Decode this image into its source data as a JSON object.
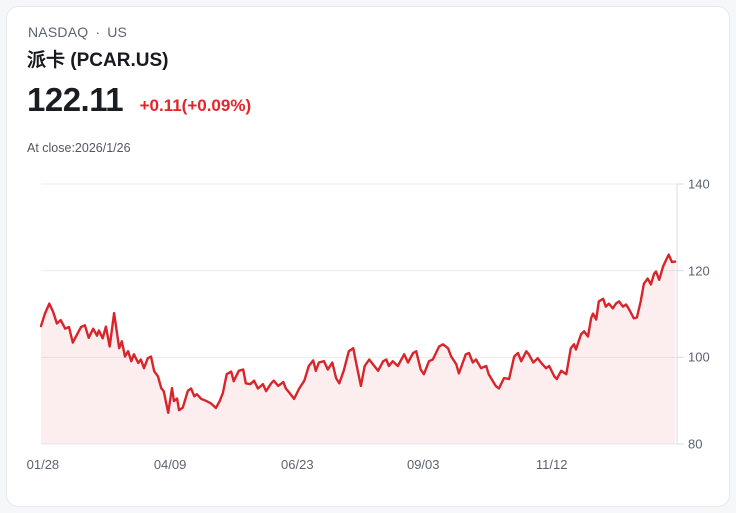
{
  "header": {
    "exchange": "NASDAQ",
    "separator": "·",
    "market": "US",
    "title": "派卡 (PCAR.US)"
  },
  "quote": {
    "price": "122.11",
    "change": "+0.11(+0.09%)",
    "as_of": "At close:2026/1/26"
  },
  "colors": {
    "line_red": "#d8252b",
    "fill_pink": "rgba(216,37,43,0.08)",
    "change_red": "#e3242b",
    "grid": "#e9ebee",
    "axis": "#d8dbe0",
    "tick_text": "#5c6370"
  },
  "chart_data": {
    "type": "area",
    "xlabel": "",
    "ylabel": "",
    "ylim": [
      80,
      140
    ],
    "y_ticks": [
      140,
      120,
      100,
      80
    ],
    "x_ticks": [
      {
        "label": "01/28",
        "pos": 0.003
      },
      {
        "label": "04/09",
        "pos": 0.203
      },
      {
        "label": "06/23",
        "pos": 0.403
      },
      {
        "label": "09/03",
        "pos": 0.601
      },
      {
        "label": "11/12",
        "pos": 0.803
      }
    ],
    "grid": "horizontal",
    "legend": "none",
    "points": [
      [
        0.0,
        107.2
      ],
      [
        0.006,
        110.0
      ],
      [
        0.013,
        112.4
      ],
      [
        0.019,
        110.5
      ],
      [
        0.025,
        107.8
      ],
      [
        0.031,
        108.6
      ],
      [
        0.038,
        106.6
      ],
      [
        0.044,
        107.0
      ],
      [
        0.05,
        103.4
      ],
      [
        0.057,
        105.4
      ],
      [
        0.063,
        107.0
      ],
      [
        0.069,
        107.4
      ],
      [
        0.075,
        104.5
      ],
      [
        0.082,
        106.6
      ],
      [
        0.088,
        105.0
      ],
      [
        0.091,
        106.2
      ],
      [
        0.097,
        104.4
      ],
      [
        0.102,
        107.1
      ],
      [
        0.108,
        102.5
      ],
      [
        0.115,
        110.2
      ],
      [
        0.123,
        102.1
      ],
      [
        0.127,
        103.7
      ],
      [
        0.132,
        100.2
      ],
      [
        0.137,
        101.4
      ],
      [
        0.142,
        99.1
      ],
      [
        0.146,
        100.7
      ],
      [
        0.153,
        98.7
      ],
      [
        0.157,
        99.5
      ],
      [
        0.162,
        97.5
      ],
      [
        0.168,
        99.8
      ],
      [
        0.173,
        100.2
      ],
      [
        0.178,
        96.8
      ],
      [
        0.184,
        95.6
      ],
      [
        0.189,
        92.9
      ],
      [
        0.193,
        92.2
      ],
      [
        0.2,
        87.2
      ],
      [
        0.206,
        92.9
      ],
      [
        0.209,
        89.9
      ],
      [
        0.214,
        90.5
      ],
      [
        0.217,
        87.8
      ],
      [
        0.223,
        88.4
      ],
      [
        0.231,
        92.3
      ],
      [
        0.236,
        92.8
      ],
      [
        0.241,
        91.0
      ],
      [
        0.245,
        91.5
      ],
      [
        0.252,
        90.4
      ],
      [
        0.259,
        90.0
      ],
      [
        0.267,
        89.4
      ],
      [
        0.275,
        88.3
      ],
      [
        0.281,
        89.9
      ],
      [
        0.286,
        91.8
      ],
      [
        0.292,
        96.1
      ],
      [
        0.299,
        96.7
      ],
      [
        0.303,
        94.5
      ],
      [
        0.311,
        96.9
      ],
      [
        0.318,
        97.2
      ],
      [
        0.322,
        94.0
      ],
      [
        0.329,
        93.8
      ],
      [
        0.335,
        94.6
      ],
      [
        0.341,
        92.8
      ],
      [
        0.349,
        93.8
      ],
      [
        0.354,
        92.2
      ],
      [
        0.362,
        94.0
      ],
      [
        0.366,
        94.6
      ],
      [
        0.373,
        93.4
      ],
      [
        0.381,
        94.3
      ],
      [
        0.385,
        92.8
      ],
      [
        0.393,
        91.4
      ],
      [
        0.398,
        90.4
      ],
      [
        0.406,
        92.8
      ],
      [
        0.414,
        94.6
      ],
      [
        0.421,
        98.0
      ],
      [
        0.428,
        99.3
      ],
      [
        0.432,
        96.9
      ],
      [
        0.437,
        98.8
      ],
      [
        0.445,
        99.1
      ],
      [
        0.451,
        97.2
      ],
      [
        0.458,
        98.8
      ],
      [
        0.464,
        95.2
      ],
      [
        0.469,
        94.0
      ],
      [
        0.476,
        96.9
      ],
      [
        0.484,
        101.4
      ],
      [
        0.491,
        102.1
      ],
      [
        0.495,
        99.1
      ],
      [
        0.503,
        93.4
      ],
      [
        0.509,
        98.0
      ],
      [
        0.516,
        99.5
      ],
      [
        0.524,
        98.0
      ],
      [
        0.53,
        96.9
      ],
      [
        0.538,
        99.1
      ],
      [
        0.543,
        99.5
      ],
      [
        0.547,
        98.0
      ],
      [
        0.553,
        99.1
      ],
      [
        0.561,
        98.0
      ],
      [
        0.571,
        100.7
      ],
      [
        0.577,
        98.8
      ],
      [
        0.585,
        101.0
      ],
      [
        0.59,
        101.4
      ],
      [
        0.597,
        97.2
      ],
      [
        0.602,
        96.1
      ],
      [
        0.61,
        99.1
      ],
      [
        0.616,
        99.5
      ],
      [
        0.626,
        102.5
      ],
      [
        0.632,
        103.0
      ],
      [
        0.64,
        102.1
      ],
      [
        0.645,
        100.2
      ],
      [
        0.653,
        98.4
      ],
      [
        0.657,
        96.3
      ],
      [
        0.668,
        100.7
      ],
      [
        0.673,
        101.0
      ],
      [
        0.679,
        98.8
      ],
      [
        0.684,
        99.5
      ],
      [
        0.692,
        97.5
      ],
      [
        0.7,
        98.0
      ],
      [
        0.704,
        96.1
      ],
      [
        0.715,
        93.4
      ],
      [
        0.72,
        92.8
      ],
      [
        0.728,
        95.2
      ],
      [
        0.736,
        95.0
      ],
      [
        0.744,
        100.2
      ],
      [
        0.75,
        101.0
      ],
      [
        0.755,
        99.1
      ],
      [
        0.763,
        101.4
      ],
      [
        0.767,
        100.7
      ],
      [
        0.774,
        98.8
      ],
      [
        0.781,
        99.8
      ],
      [
        0.786,
        98.8
      ],
      [
        0.794,
        97.5
      ],
      [
        0.799,
        98.0
      ],
      [
        0.807,
        95.6
      ],
      [
        0.811,
        95.0
      ],
      [
        0.818,
        96.9
      ],
      [
        0.826,
        96.1
      ],
      [
        0.833,
        102.1
      ],
      [
        0.838,
        103.0
      ],
      [
        0.841,
        101.8
      ],
      [
        0.849,
        105.3
      ],
      [
        0.854,
        106.0
      ],
      [
        0.86,
        104.8
      ],
      [
        0.865,
        109.0
      ],
      [
        0.868,
        110.1
      ],
      [
        0.873,
        108.7
      ],
      [
        0.877,
        112.9
      ],
      [
        0.884,
        113.5
      ],
      [
        0.888,
        111.7
      ],
      [
        0.893,
        112.4
      ],
      [
        0.899,
        111.3
      ],
      [
        0.904,
        112.4
      ],
      [
        0.909,
        112.9
      ],
      [
        0.915,
        111.7
      ],
      [
        0.92,
        112.2
      ],
      [
        0.925,
        111.0
      ],
      [
        0.932,
        109.0
      ],
      [
        0.937,
        109.2
      ],
      [
        0.943,
        112.9
      ],
      [
        0.948,
        117.0
      ],
      [
        0.954,
        118.2
      ],
      [
        0.959,
        116.8
      ],
      [
        0.964,
        119.3
      ],
      [
        0.967,
        119.8
      ],
      [
        0.972,
        117.9
      ],
      [
        0.978,
        120.9
      ],
      [
        0.983,
        122.5
      ],
      [
        0.987,
        123.7
      ],
      [
        0.992,
        122.0
      ],
      [
        0.997,
        122.1
      ]
    ]
  }
}
